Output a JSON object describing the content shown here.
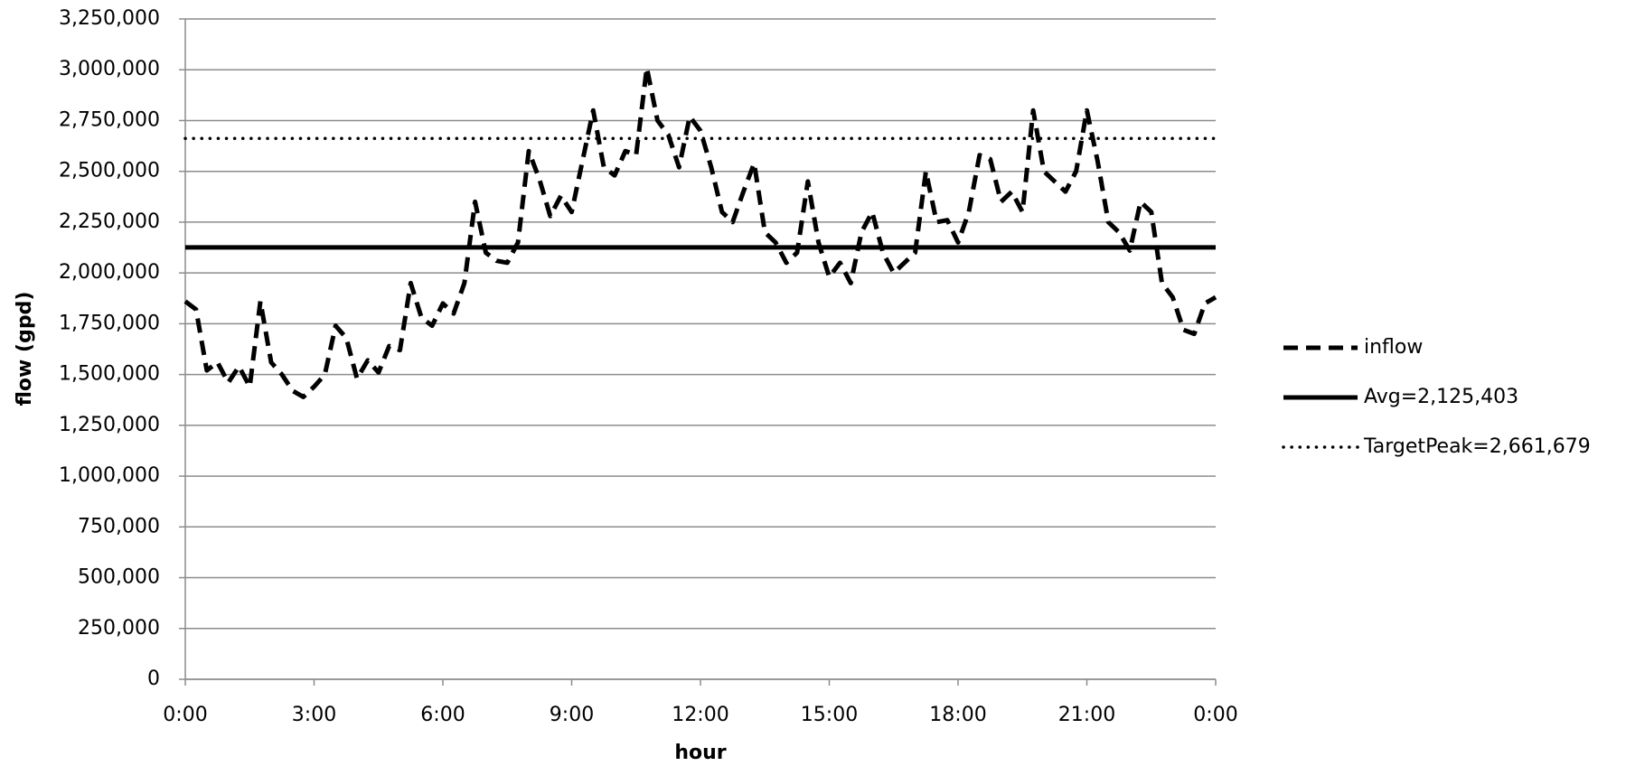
{
  "chart_data": {
    "type": "line",
    "y_label": "flow (gpd)",
    "x_label": "hour",
    "xlim": [
      0,
      24
    ],
    "xticks": [
      {
        "value": 0,
        "label": "0:00"
      },
      {
        "value": 3,
        "label": "3:00"
      },
      {
        "value": 6,
        "label": "6:00"
      },
      {
        "value": 9,
        "label": "9:00"
      },
      {
        "value": 12,
        "label": "12:00"
      },
      {
        "value": 15,
        "label": "15:00"
      },
      {
        "value": 18,
        "label": "18:00"
      },
      {
        "value": 21,
        "label": "21:00"
      },
      {
        "value": 24,
        "label": "0:00"
      }
    ],
    "ylim": [
      0,
      3250000
    ],
    "yticks": [
      0,
      {
        "value": 250000,
        "label": "250,000"
      },
      {
        "value": 500000,
        "label": "500,000"
      },
      {
        "value": 750000,
        "label": "750,000"
      },
      {
        "value": 1000000,
        "label": "1,000,000"
      },
      {
        "value": 1250000,
        "label": "1,250,000"
      },
      {
        "value": 1500000,
        "label": "1,500,000"
      },
      {
        "value": 1750000,
        "label": "1,750,000"
      },
      {
        "value": 2000000,
        "label": "2,000,000"
      },
      {
        "value": 2250000,
        "label": "2,250,000"
      },
      {
        "value": 2500000,
        "label": "2,500,000"
      },
      {
        "value": 2750000,
        "label": "2,750,000"
      },
      {
        "value": 3000000,
        "label": "3,000,000"
      },
      {
        "value": 3250000,
        "label": "3,250,000"
      }
    ],
    "grid": true,
    "legend": "right",
    "series": [
      {
        "name": "inflow",
        "color": "#000000",
        "dash": "dashed",
        "x": [
          0,
          0.25,
          0.5,
          0.75,
          1,
          1.25,
          1.5,
          1.75,
          2,
          2.25,
          2.5,
          2.75,
          3,
          3.25,
          3.5,
          3.75,
          4,
          4.25,
          4.5,
          4.75,
          5,
          5.25,
          5.5,
          5.75,
          6,
          6.25,
          6.5,
          6.75,
          7,
          7.25,
          7.5,
          7.75,
          8,
          8.25,
          8.5,
          8.75,
          9,
          9.25,
          9.5,
          9.75,
          10,
          10.25,
          10.5,
          10.75,
          11,
          11.25,
          11.5,
          11.75,
          12,
          12.25,
          12.5,
          12.75,
          13,
          13.25,
          13.5,
          13.75,
          14,
          14.25,
          14.5,
          14.75,
          15,
          15.25,
          15.5,
          15.75,
          16,
          16.25,
          16.5,
          16.75,
          17,
          17.25,
          17.5,
          17.75,
          18,
          18.25,
          18.5,
          18.75,
          19,
          19.25,
          19.5,
          19.75,
          20,
          20.25,
          20.5,
          20.75,
          21,
          21.25,
          21.5,
          21.75,
          22,
          22.25,
          22.5,
          22.75,
          23,
          23.25,
          23.5,
          23.75,
          24
        ],
        "values": [
          1860000,
          1820000,
          1520000,
          1560000,
          1460000,
          1540000,
          1440000,
          1860000,
          1560000,
          1500000,
          1420000,
          1390000,
          1440000,
          1500000,
          1740000,
          1680000,
          1480000,
          1570000,
          1510000,
          1640000,
          1620000,
          1950000,
          1780000,
          1740000,
          1850000,
          1800000,
          1950000,
          2350000,
          2100000,
          2060000,
          2050000,
          2150000,
          2600000,
          2460000,
          2280000,
          2380000,
          2300000,
          2550000,
          2800000,
          2520000,
          2480000,
          2600000,
          2580000,
          3010000,
          2750000,
          2680000,
          2520000,
          2770000,
          2700000,
          2520000,
          2300000,
          2250000,
          2400000,
          2540000,
          2200000,
          2150000,
          2050000,
          2100000,
          2450000,
          2150000,
          1980000,
          2050000,
          1950000,
          2200000,
          2300000,
          2100000,
          2000000,
          2050000,
          2100000,
          2500000,
          2250000,
          2260000,
          2150000,
          2300000,
          2580000,
          2560000,
          2350000,
          2400000,
          2300000,
          2800000,
          2500000,
          2450000,
          2400000,
          2500000,
          2800000,
          2550000,
          2250000,
          2200000,
          2110000,
          2350000,
          2300000,
          1950000,
          1880000,
          1720000,
          1700000,
          1850000,
          1880000
        ]
      },
      {
        "name": "Avg=2,125,403",
        "color": "#000000",
        "dash": "solid",
        "x": [
          0,
          24
        ],
        "values": [
          2125403,
          2125403
        ]
      },
      {
        "name": "TargetPeak=2,661,679",
        "color": "#000000",
        "dash": "dotted",
        "x": [
          0,
          24
        ],
        "values": [
          2661679,
          2661679
        ]
      }
    ]
  }
}
